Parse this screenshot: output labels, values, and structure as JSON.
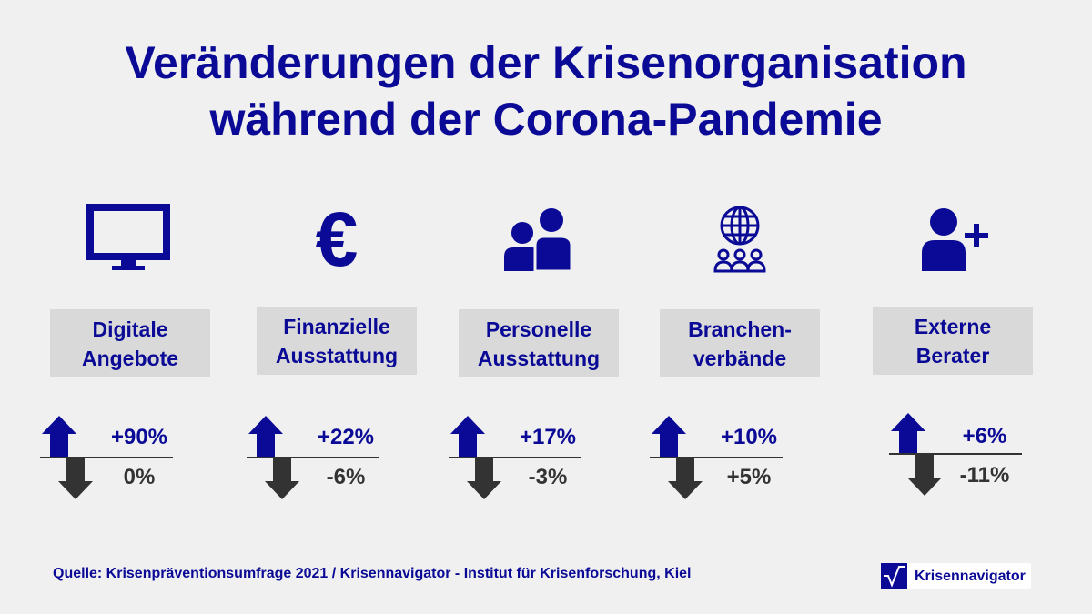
{
  "title_line1": "Veränderungen der Krisenorganisation",
  "title_line2": "während der Corona-Pandemie",
  "colors": {
    "accent": "#0a0a96",
    "negative": "#333333",
    "label_bg": "#d9d9d9"
  },
  "items": [
    {
      "icon": "monitor-icon",
      "label1": "Digitale",
      "label2": "Angebote",
      "increase": "+90%",
      "decrease": "0%"
    },
    {
      "icon": "euro-icon",
      "label1": "Finanzielle",
      "label2": "Ausstattung",
      "increase": "+22%",
      "decrease": "-6%"
    },
    {
      "icon": "people-icon",
      "label1": "Personelle",
      "label2": "Ausstattung",
      "increase": "+17%",
      "decrease": "-3%"
    },
    {
      "icon": "globe-network-icon",
      "label1": "Branchen-",
      "label2": "verbände",
      "increase": "+10%",
      "decrease": "+5%"
    },
    {
      "icon": "user-plus-icon",
      "label1": "Externe",
      "label2": "Berater",
      "increase": "+6%",
      "decrease": "-11%"
    }
  ],
  "source": "Quelle: Krisenpräventionsumfrage 2021 / Krisennavigator - Institut für Krisenforschung, Kiel",
  "logo": "Krisennavigator"
}
